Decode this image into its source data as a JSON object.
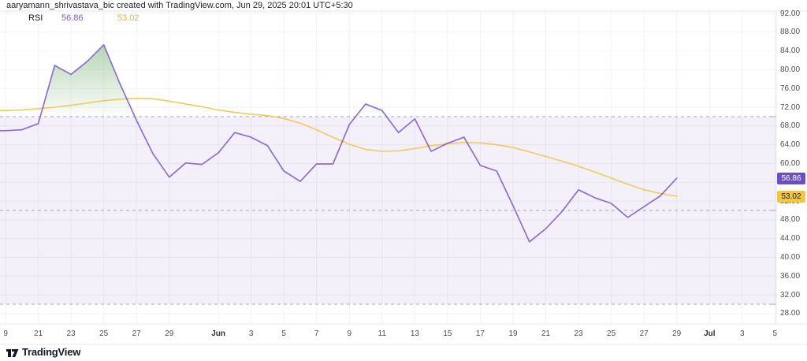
{
  "header": {
    "attribution": "aaryamann_shrivastava_bic created with TradingView.com, Jun 29, 2025 20:01 UTC+5:30"
  },
  "legend": {
    "indicator": "RSI",
    "rsi_value": "56.86",
    "ma_value": "53.02"
  },
  "footer": {
    "logo_text": "TradingView"
  },
  "price_axis": {
    "labels": [
      "92.00",
      "88.00",
      "84.00",
      "80.00",
      "76.00",
      "72.00",
      "68.00",
      "64.00",
      "60.00",
      "56.00",
      "52.00",
      "48.00",
      "44.00",
      "40.00",
      "36.00",
      "32.00",
      "28.00"
    ],
    "badges": [
      {
        "label": "56.86",
        "value": 56.86,
        "bg": "#6C4EC4",
        "fg": "#FFFFFF"
      },
      {
        "label": "53.02",
        "value": 53.02,
        "bg": "#F0C64A",
        "fg": "#1C1C1C"
      }
    ]
  },
  "chart_data": {
    "type": "line",
    "title": "RSI",
    "legend_position": "top-left",
    "grid": true,
    "colors": {
      "rsi": "#7E57C2",
      "ma": "#F0C850",
      "ma_text": "#E3B53C",
      "grid": "#F2F2F6",
      "band_fill": "rgba(126,87,194,0.09)",
      "band_line": "#A8A6B3",
      "border": "#E7E7EB",
      "overbought": "#66A861"
    },
    "bands": {
      "upper": 70,
      "middle": 50,
      "lower": 30
    },
    "axis": {
      "ylim": [
        25.8,
        92.5
      ],
      "dlim": [
        -13.34,
        34.08
      ],
      "y_ticks": [
        "92.00",
        "88.00",
        "84.00",
        "80.00",
        "76.00",
        "72.00",
        "68.00",
        "64.00",
        "60.00",
        "56.00",
        "52.00",
        "48.00",
        "44.00",
        "40.00",
        "36.00",
        "32.00",
        "28.00"
      ],
      "time_ticks": [
        {
          "label": "9",
          "d": -13
        },
        {
          "label": "21",
          "d": -11
        },
        {
          "label": "23",
          "d": -9
        },
        {
          "label": "25",
          "d": -7
        },
        {
          "label": "27",
          "d": -5
        },
        {
          "label": "29",
          "d": -3
        },
        {
          "label": "Jun",
          "d": 0,
          "bold": true
        },
        {
          "label": "3",
          "d": 2
        },
        {
          "label": "5",
          "d": 4
        },
        {
          "label": "7",
          "d": 6
        },
        {
          "label": "9",
          "d": 8
        },
        {
          "label": "11",
          "d": 10
        },
        {
          "label": "13",
          "d": 12
        },
        {
          "label": "15",
          "d": 14
        },
        {
          "label": "17",
          "d": 16
        },
        {
          "label": "19",
          "d": 18
        },
        {
          "label": "21",
          "d": 20
        },
        {
          "label": "23",
          "d": 22
        },
        {
          "label": "25",
          "d": 24
        },
        {
          "label": "27",
          "d": 26
        },
        {
          "label": "29",
          "d": 28
        },
        {
          "label": "Jul",
          "d": 30,
          "bold": true
        },
        {
          "label": "3",
          "d": 32
        },
        {
          "label": "5",
          "d": 34
        }
      ]
    },
    "series": [
      {
        "name": "RSI",
        "points": [
          {
            "d": -13.4,
            "v": 67.0
          },
          {
            "d": -13,
            "v": 67.0
          },
          {
            "d": -12,
            "v": 67.2
          },
          {
            "d": -11,
            "v": 68.5
          },
          {
            "d": -10,
            "v": 80.9
          },
          {
            "d": -9,
            "v": 79.0
          },
          {
            "d": -8,
            "v": 81.8
          },
          {
            "d": -7,
            "v": 85.3
          },
          {
            "d": -6,
            "v": 76.9
          },
          {
            "d": -5,
            "v": 69.2
          },
          {
            "d": -4,
            "v": 62.1
          },
          {
            "d": -3,
            "v": 57.1
          },
          {
            "d": -2,
            "v": 60.1
          },
          {
            "d": -1,
            "v": 59.8
          },
          {
            "d": 0,
            "v": 62.3
          },
          {
            "d": 1,
            "v": 66.6
          },
          {
            "d": 2,
            "v": 65.6
          },
          {
            "d": 3,
            "v": 63.8
          },
          {
            "d": 4,
            "v": 58.4
          },
          {
            "d": 5,
            "v": 56.2
          },
          {
            "d": 6,
            "v": 59.9
          },
          {
            "d": 7,
            "v": 59.9
          },
          {
            "d": 8,
            "v": 68.3
          },
          {
            "d": 9,
            "v": 72.7
          },
          {
            "d": 10,
            "v": 71.3
          },
          {
            "d": 11,
            "v": 66.6
          },
          {
            "d": 12,
            "v": 69.5
          },
          {
            "d": 13,
            "v": 62.6
          },
          {
            "d": 14,
            "v": 64.3
          },
          {
            "d": 15,
            "v": 65.6
          },
          {
            "d": 16,
            "v": 59.6
          },
          {
            "d": 17,
            "v": 58.4
          },
          {
            "d": 18,
            "v": 51.0
          },
          {
            "d": 19,
            "v": 43.3
          },
          {
            "d": 20,
            "v": 46.1
          },
          {
            "d": 21,
            "v": 49.8
          },
          {
            "d": 22,
            "v": 54.4
          },
          {
            "d": 23,
            "v": 52.7
          },
          {
            "d": 24,
            "v": 51.5
          },
          {
            "d": 25,
            "v": 48.5
          },
          {
            "d": 26,
            "v": 50.8
          },
          {
            "d": 27,
            "v": 53.1
          },
          {
            "d": 28,
            "v": 56.86
          }
        ]
      },
      {
        "name": "RSI-based MA",
        "points": [
          {
            "d": -13.4,
            "v": 71.3
          },
          {
            "d": -13,
            "v": 71.3
          },
          {
            "d": -12,
            "v": 71.4
          },
          {
            "d": -11,
            "v": 71.7
          },
          {
            "d": -10,
            "v": 72.0
          },
          {
            "d": -9,
            "v": 72.4
          },
          {
            "d": -8,
            "v": 72.9
          },
          {
            "d": -7,
            "v": 73.4
          },
          {
            "d": -6,
            "v": 73.7
          },
          {
            "d": -5,
            "v": 73.9
          },
          {
            "d": -4,
            "v": 73.8
          },
          {
            "d": -3,
            "v": 73.3
          },
          {
            "d": -2,
            "v": 72.7
          },
          {
            "d": -1,
            "v": 72.1
          },
          {
            "d": 0,
            "v": 71.4
          },
          {
            "d": 1,
            "v": 70.9
          },
          {
            "d": 2,
            "v": 70.5
          },
          {
            "d": 3,
            "v": 70.2
          },
          {
            "d": 4,
            "v": 69.6
          },
          {
            "d": 5,
            "v": 68.6
          },
          {
            "d": 6,
            "v": 67.2
          },
          {
            "d": 7,
            "v": 65.6
          },
          {
            "d": 8,
            "v": 64.1
          },
          {
            "d": 9,
            "v": 63.0
          },
          {
            "d": 10,
            "v": 62.6
          },
          {
            "d": 11,
            "v": 62.7
          },
          {
            "d": 12,
            "v": 63.2
          },
          {
            "d": 13,
            "v": 63.8
          },
          {
            "d": 14,
            "v": 64.2
          },
          {
            "d": 15,
            "v": 64.5
          },
          {
            "d": 16,
            "v": 64.4
          },
          {
            "d": 17,
            "v": 64.0
          },
          {
            "d": 18,
            "v": 63.4
          },
          {
            "d": 19,
            "v": 62.5
          },
          {
            "d": 20,
            "v": 61.5
          },
          {
            "d": 21,
            "v": 60.5
          },
          {
            "d": 22,
            "v": 59.4
          },
          {
            "d": 23,
            "v": 58.2
          },
          {
            "d": 24,
            "v": 56.9
          },
          {
            "d": 25,
            "v": 55.6
          },
          {
            "d": 26,
            "v": 54.4
          },
          {
            "d": 27,
            "v": 53.6
          },
          {
            "d": 28,
            "v": 53.02
          }
        ]
      }
    ]
  }
}
